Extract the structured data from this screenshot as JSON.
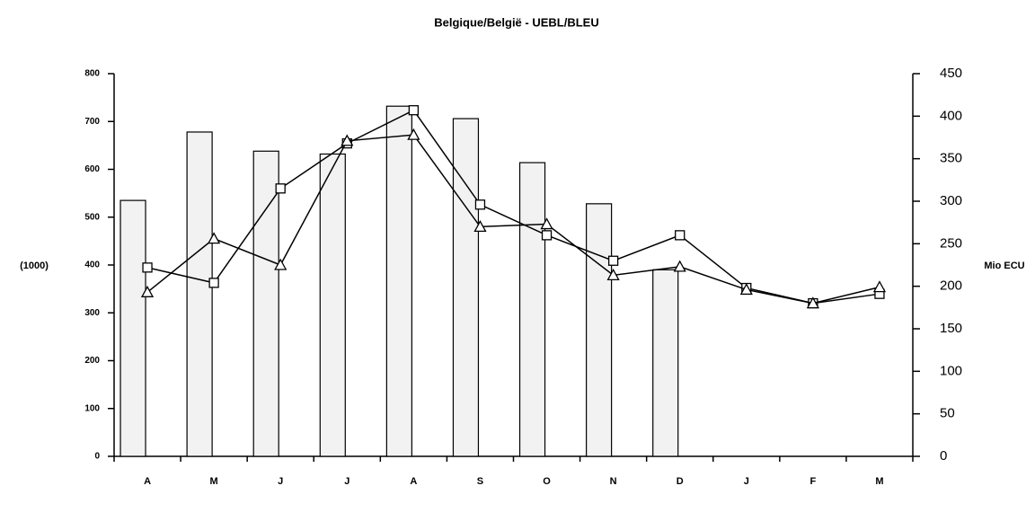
{
  "chart_data": {
    "type": "bar",
    "title": "Belgique/België - UEBL/BLEU",
    "ylabel": "(1000)",
    "y2label": "Mio ECU",
    "categories": [
      "A",
      "M",
      "J",
      "J",
      "A",
      "S",
      "O",
      "N",
      "D",
      "J",
      "F",
      "M"
    ],
    "values": [
      535,
      678,
      638,
      632,
      732,
      706,
      614,
      528,
      390,
      null,
      null,
      null
    ],
    "color": "#f2f2f2",
    "series": [
      {
        "type": "line",
        "marker": "square",
        "color": "#000000",
        "axis": "y2",
        "values": [
          222,
          204,
          315,
          368,
          407,
          296,
          260,
          230,
          260,
          198,
          180,
          191
        ]
      },
      {
        "type": "line",
        "marker": "triangle",
        "color": "#000000",
        "axis": "y2",
        "values": [
          193,
          256,
          225,
          371,
          378,
          270,
          273,
          213,
          223,
          196,
          180,
          199
        ]
      }
    ],
    "ylim": [
      0,
      800
    ],
    "yticks": [
      0,
      100,
      200,
      300,
      400,
      500,
      600,
      700,
      800
    ],
    "y2lim": [
      0,
      450
    ],
    "y2ticks": [
      0,
      50,
      100,
      150,
      200,
      250,
      300,
      350,
      400,
      450
    ],
    "grid": false
  }
}
